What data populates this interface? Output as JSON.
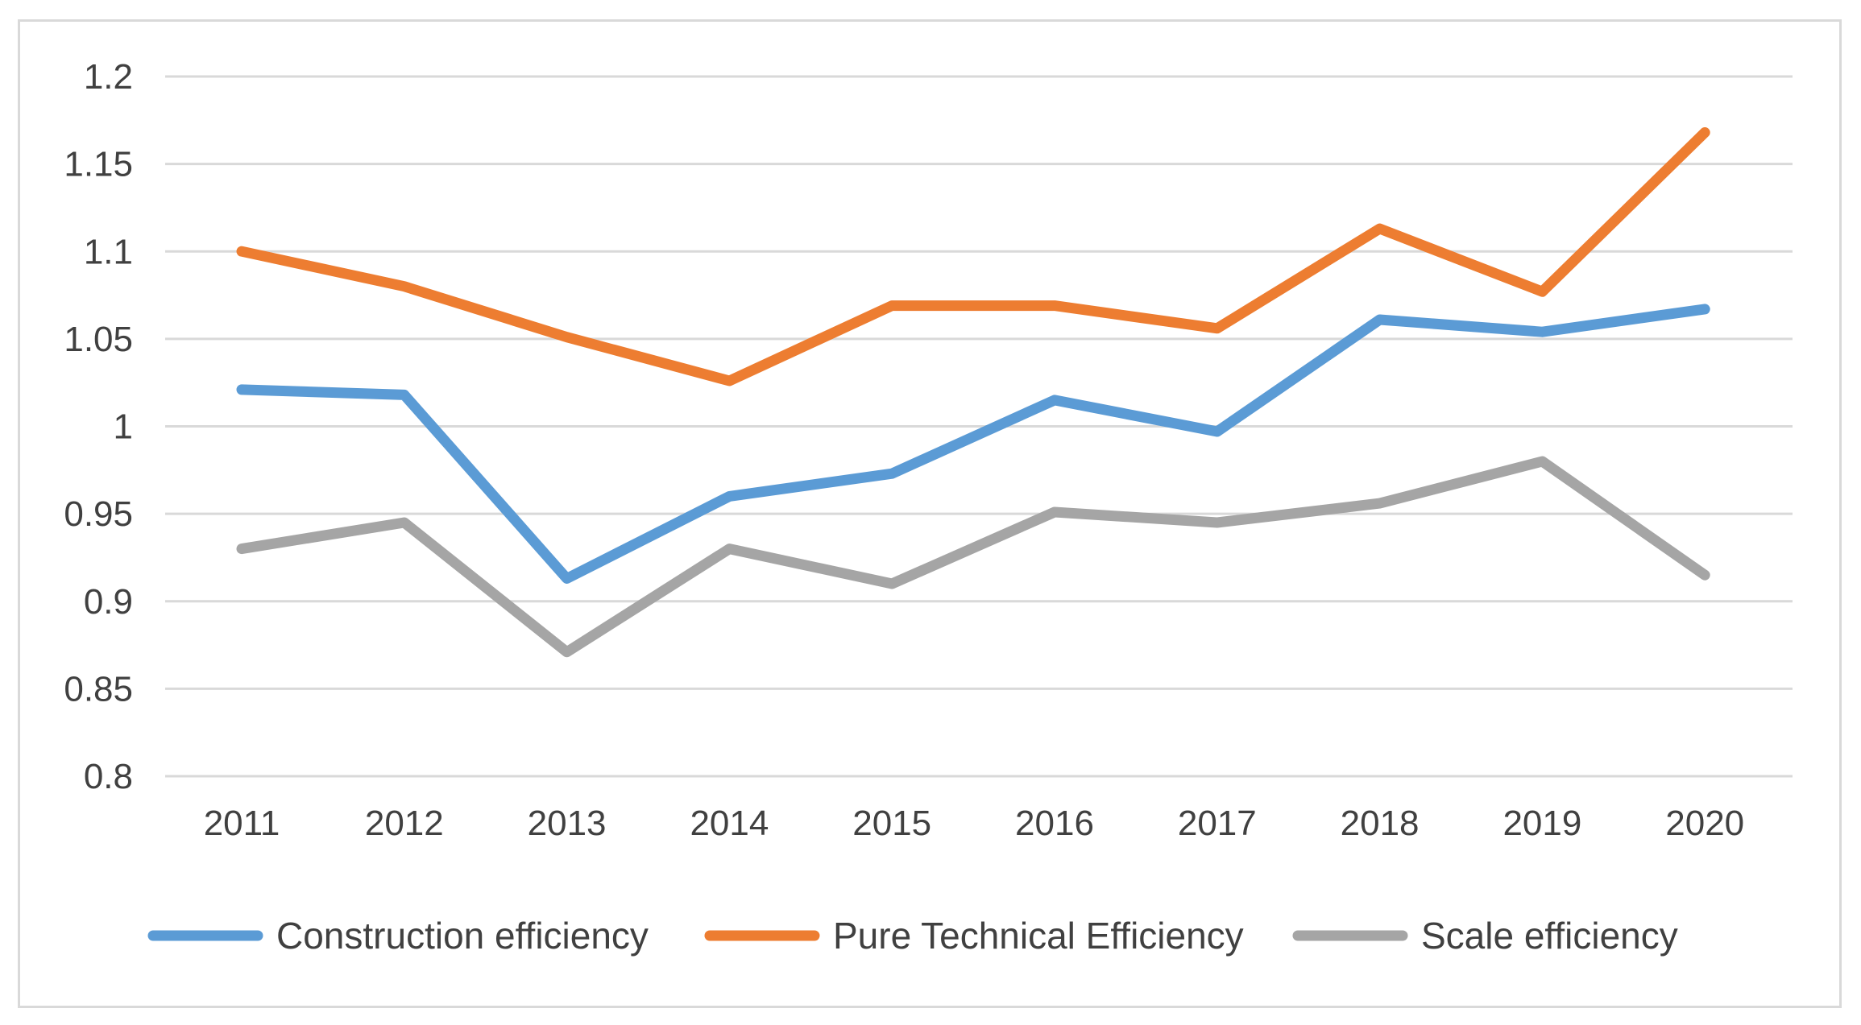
{
  "chart_data": {
    "type": "line",
    "title": "",
    "xlabel": "",
    "ylabel": "",
    "categories": [
      "2011",
      "2012",
      "2013",
      "2014",
      "2015",
      "2016",
      "2017",
      "2018",
      "2019",
      "2020"
    ],
    "ylim": [
      0.8,
      1.2
    ],
    "yticks": [
      0.8,
      0.85,
      0.9,
      0.95,
      1,
      1.05,
      1.1,
      1.15,
      1.2
    ],
    "ytick_labels": [
      "0.8",
      "0.85",
      "0.9",
      "0.95",
      "1",
      "1.05",
      "1.1",
      "1.15",
      "1.2"
    ],
    "grid": true,
    "legend_position": "bottom",
    "series": [
      {
        "name": "Construction efficiency",
        "color": "#5b9bd5",
        "values": [
          1.021,
          1.018,
          0.913,
          0.96,
          0.973,
          1.015,
          0.997,
          1.061,
          1.054,
          1.067
        ]
      },
      {
        "name": "Pure Technical Efficiency",
        "color": "#ed7d31",
        "values": [
          1.1,
          1.08,
          1.051,
          1.026,
          1.069,
          1.069,
          1.056,
          1.113,
          1.077,
          1.168
        ]
      },
      {
        "name": "Scale efficiency",
        "color": "#a5a5a5",
        "values": [
          0.93,
          0.945,
          0.871,
          0.93,
          0.91,
          0.951,
          0.945,
          0.956,
          0.98,
          0.915
        ]
      }
    ]
  }
}
